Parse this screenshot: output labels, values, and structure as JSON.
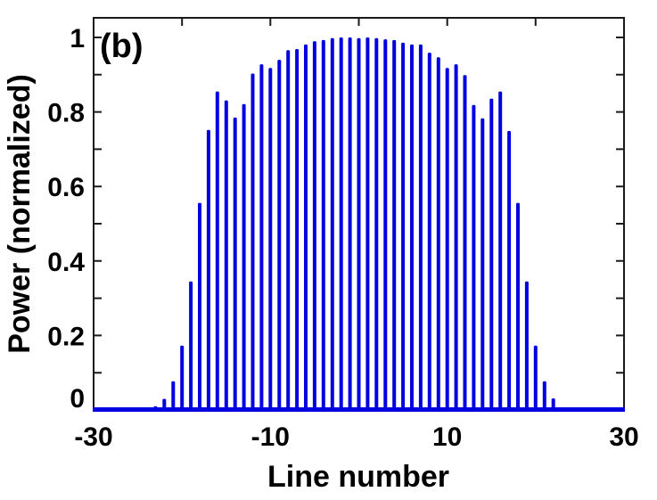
{
  "chart_data": {
    "type": "bar",
    "subtype": "stem-comb-spectrum",
    "title": "",
    "annotation": "(b)",
    "xlabel": "Line number",
    "ylabel": "Power (normalized)",
    "xlim": [
      -30,
      30
    ],
    "ylim": [
      0,
      1.05
    ],
    "grid": false,
    "legend": null,
    "bar_color": "#0000e0",
    "axis_color": "#1a1a1a",
    "text_color": "#000000",
    "x_ticks": [
      -30,
      -20,
      -10,
      0,
      10,
      20,
      30
    ],
    "x_labeled_ticks": [
      {
        "value": -30,
        "label": "-30"
      },
      {
        "value": -10,
        "label": "-10"
      },
      {
        "value": 10,
        "label": "10"
      },
      {
        "value": 30,
        "label": "30"
      }
    ],
    "y_ticks": [
      0,
      0.1,
      0.2,
      0.3,
      0.4,
      0.5,
      0.6,
      0.7,
      0.8,
      0.9,
      1.0
    ],
    "y_labeled_ticks": [
      {
        "value": 0,
        "label": "0"
      },
      {
        "value": 0.2,
        "label": "0.2"
      },
      {
        "value": 0.4,
        "label": "0.4"
      },
      {
        "value": 0.6,
        "label": "0.6"
      },
      {
        "value": 0.8,
        "label": "0.8"
      },
      {
        "value": 1,
        "label": "1"
      }
    ],
    "x": [
      -23,
      -22,
      -21,
      -20,
      -19,
      -18,
      -17,
      -16,
      -15,
      -14,
      -13,
      -12,
      -11,
      -10,
      -9,
      -8,
      -7,
      -6,
      -5,
      -4,
      -3,
      -2,
      -1,
      0,
      1,
      2,
      3,
      4,
      5,
      6,
      7,
      8,
      9,
      10,
      11,
      12,
      13,
      14,
      15,
      16,
      17,
      18,
      19,
      20,
      21,
      22,
      23
    ],
    "values": [
      0.01,
      0.03,
      0.077,
      0.173,
      0.345,
      0.556,
      0.752,
      0.855,
      0.831,
      0.785,
      0.821,
      0.903,
      0.928,
      0.918,
      0.94,
      0.966,
      0.969,
      0.981,
      0.99,
      0.993,
      0.998,
      1.0,
      1.0,
      0.998,
      1.0,
      0.998,
      0.995,
      0.993,
      0.986,
      0.981,
      0.981,
      0.959,
      0.947,
      0.918,
      0.928,
      0.899,
      0.819,
      0.783,
      0.836,
      0.855,
      0.749,
      0.556,
      0.345,
      0.173,
      0.077,
      0.031,
      0.007
    ]
  }
}
